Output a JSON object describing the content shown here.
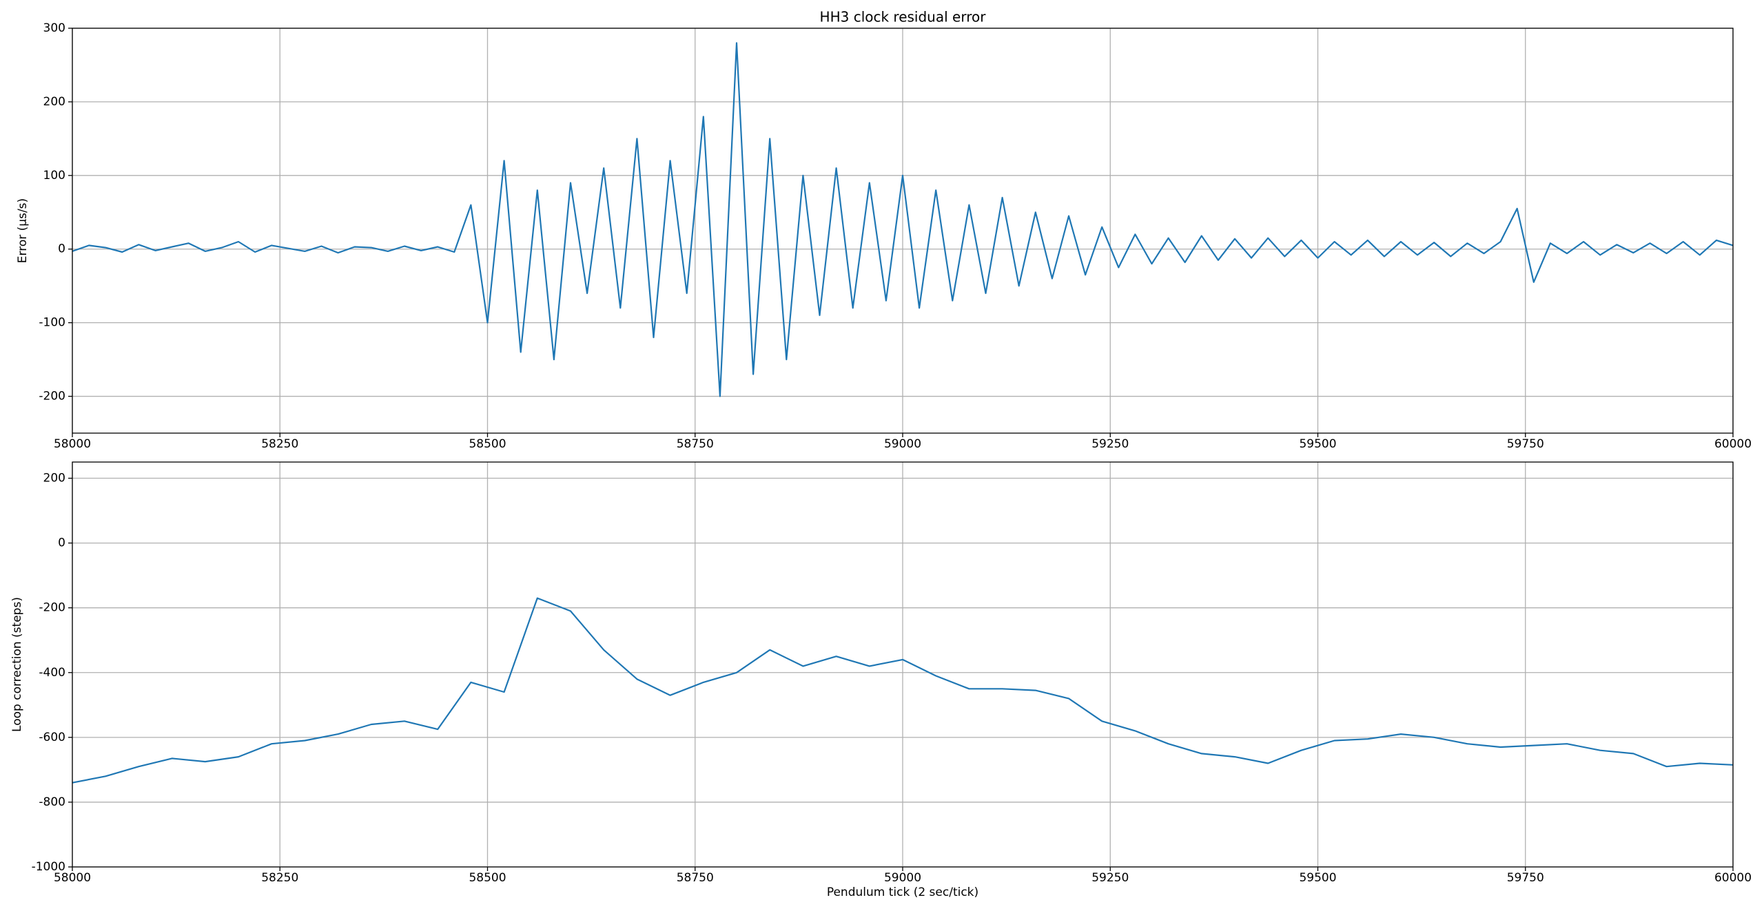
{
  "chart_data": [
    {
      "type": "line",
      "title": "HH3 clock residual error",
      "y_label": "Error (μs/s)",
      "color": "#1f77b4",
      "grid": true,
      "xlim": [
        58000,
        60000
      ],
      "xticks": [
        58000,
        58250,
        58500,
        58750,
        59000,
        59250,
        59500,
        59750,
        60000
      ],
      "ylim": [
        -250,
        300
      ],
      "yticks": [
        -200,
        -100,
        0,
        100,
        200,
        300
      ],
      "x": [
        58000,
        58020,
        58040,
        58060,
        58080,
        58100,
        58120,
        58140,
        58160,
        58180,
        58200,
        58220,
        58240,
        58260,
        58280,
        58300,
        58320,
        58340,
        58360,
        58380,
        58400,
        58420,
        58440,
        58460,
        58480,
        58500,
        58520,
        58540,
        58560,
        58580,
        58600,
        58620,
        58640,
        58660,
        58680,
        58700,
        58720,
        58740,
        58760,
        58780,
        58800,
        58820,
        58840,
        58860,
        58880,
        58900,
        58920,
        58940,
        58960,
        58980,
        59000,
        59020,
        59040,
        59060,
        59080,
        59100,
        59120,
        59140,
        59160,
        59180,
        59200,
        59220,
        59240,
        59260,
        59280,
        59300,
        59320,
        59340,
        59360,
        59380,
        59400,
        59420,
        59440,
        59460,
        59480,
        59500,
        59520,
        59540,
        59560,
        59580,
        59600,
        59620,
        59640,
        59660,
        59680,
        59700,
        59720,
        59740,
        59760,
        59780,
        59800,
        59820,
        59840,
        59860,
        59880,
        59900,
        59920,
        59940,
        59960,
        59980,
        60000
      ],
      "values": [
        -3,
        5,
        2,
        -4,
        6,
        -2,
        3,
        8,
        -3,
        2,
        10,
        -4,
        5,
        1,
        -3,
        4,
        -5,
        3,
        2,
        -3,
        4,
        -2,
        3,
        -4,
        60,
        -100,
        120,
        -140,
        80,
        -150,
        90,
        -60,
        110,
        -80,
        150,
        -120,
        120,
        -60,
        180,
        -200,
        280,
        -170,
        150,
        -150,
        100,
        -90,
        110,
        -80,
        90,
        -70,
        100,
        -80,
        80,
        -70,
        60,
        -60,
        70,
        -50,
        50,
        -40,
        45,
        -35,
        30,
        -25,
        20,
        -20,
        15,
        -18,
        18,
        -15,
        14,
        -12,
        15,
        -10,
        12,
        -12,
        10,
        -8,
        12,
        -10,
        10,
        -8,
        9,
        -10,
        8,
        -6,
        10,
        55,
        -45,
        8,
        -6,
        10,
        -8,
        6,
        -5,
        8,
        -6,
        10,
        -8,
        12,
        5
      ]
    },
    {
      "type": "line",
      "x_label": "Pendulum tick (2 sec/tick)",
      "y_label": "Loop correction (steps)",
      "color": "#1f77b4",
      "grid": true,
      "xlim": [
        58000,
        60000
      ],
      "xticks": [
        58000,
        58250,
        58500,
        58750,
        59000,
        59250,
        59500,
        59750,
        60000
      ],
      "ylim": [
        -1000,
        250
      ],
      "yticks": [
        -1000,
        -800,
        -600,
        -400,
        -200,
        0,
        200
      ],
      "x": [
        58000,
        58040,
        58080,
        58120,
        58160,
        58200,
        58240,
        58280,
        58320,
        58360,
        58400,
        58440,
        58480,
        58520,
        58560,
        58600,
        58640,
        58680,
        58720,
        58760,
        58800,
        58840,
        58880,
        58920,
        58960,
        59000,
        59040,
        59080,
        59120,
        59160,
        59200,
        59240,
        59280,
        59320,
        59360,
        59400,
        59440,
        59480,
        59520,
        59560,
        59600,
        59640,
        59680,
        59720,
        59760,
        59800,
        59840,
        59880,
        59920,
        59960,
        60000
      ],
      "values": [
        -740,
        -720,
        -690,
        -665,
        -675,
        -660,
        -620,
        -610,
        -590,
        -560,
        -550,
        -575,
        -430,
        -460,
        -170,
        -210,
        -330,
        -420,
        -470,
        -430,
        -400,
        -330,
        -380,
        -350,
        -380,
        -360,
        -410,
        -450,
        -450,
        -455,
        -480,
        -550,
        -580,
        -620,
        -650,
        -660,
        -680,
        -640,
        -610,
        -605,
        -590,
        -600,
        -620,
        -630,
        -625,
        -620,
        -640,
        -650,
        -690,
        -680,
        -685
      ]
    }
  ]
}
